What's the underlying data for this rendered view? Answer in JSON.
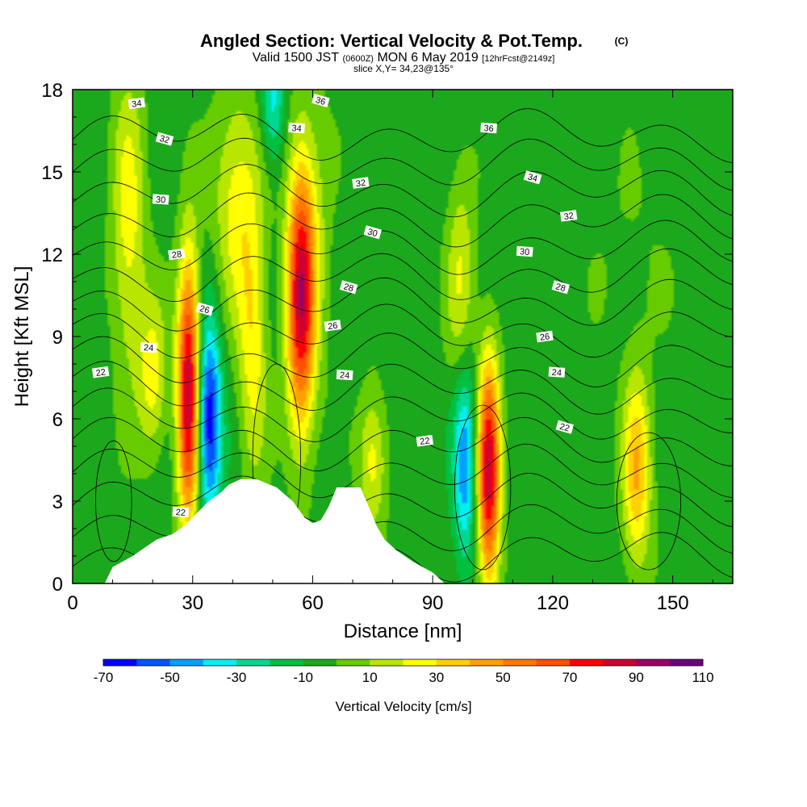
{
  "title": {
    "main": "Angled Section: Vertical Velocity & Pot.Temp.",
    "main_suffix": "(C)",
    "valid_prefix": "Valid 1500 JST",
    "valid_utc": "(0600Z)",
    "valid_date": "MON 6 May 2019",
    "valid_fcst": "[12hrFcst@2149z]",
    "slice": "slice X,Y= 34,23@135°"
  },
  "chart_data": {
    "type": "heatmap",
    "xlabel": "Distance [nm]",
    "ylabel": "Height [Kft MSL]",
    "xlim": [
      0,
      165
    ],
    "ylim": [
      0,
      18
    ],
    "x_ticks": [
      "0",
      "30",
      "60",
      "90",
      "120",
      "150"
    ],
    "x_tick_values": [
      0,
      30,
      60,
      90,
      120,
      150
    ],
    "y_ticks": [
      "0",
      "3",
      "6",
      "9",
      "12",
      "15",
      "18"
    ],
    "y_tick_values": [
      0,
      3,
      6,
      9,
      12,
      15,
      18
    ],
    "background_value": -5,
    "velocity_cells": [
      {
        "x": 14,
        "y": 13.0,
        "sx": 3.0,
        "sy": 4.0,
        "v": 30
      },
      {
        "x": 20,
        "y": 7.5,
        "sx": 2.5,
        "sy": 2.0,
        "v": 30
      },
      {
        "x": 29,
        "y": 7.0,
        "sx": 2.0,
        "sy": 3.5,
        "v": 95
      },
      {
        "x": 34,
        "y": 6.0,
        "sx": 2.2,
        "sy": 2.5,
        "v": -65
      },
      {
        "x": 41,
        "y": 14.0,
        "sx": 4.0,
        "sy": 3.0,
        "v": 30
      },
      {
        "x": 45,
        "y": 8.5,
        "sx": 2.5,
        "sy": 3.5,
        "v": 30
      },
      {
        "x": 57,
        "y": 10.5,
        "sx": 2.5,
        "sy": 3.5,
        "v": 90
      },
      {
        "x": 61,
        "y": 13.0,
        "sx": 3.0,
        "sy": 4.0,
        "v": 12
      },
      {
        "x": 75,
        "y": 4.5,
        "sx": 2.5,
        "sy": 1.8,
        "v": 30
      },
      {
        "x": 97,
        "y": 11.0,
        "sx": 2.5,
        "sy": 3.0,
        "v": 25
      },
      {
        "x": 98,
        "y": 4.5,
        "sx": 2.0,
        "sy": 2.5,
        "v": -45
      },
      {
        "x": 104,
        "y": 4.0,
        "sx": 2.0,
        "sy": 3.0,
        "v": 90
      },
      {
        "x": 141,
        "y": 4.0,
        "sx": 2.5,
        "sy": 2.5,
        "v": 45
      },
      {
        "x": 50,
        "y": 17.5,
        "sx": 2.0,
        "sy": 1.5,
        "v": -30
      },
      {
        "x": 140,
        "y": 12.0,
        "sx": 8.0,
        "sy": 3.0,
        "v": 5
      }
    ],
    "terrain": [
      [
        0,
        0
      ],
      [
        8,
        0
      ],
      [
        10,
        0.6
      ],
      [
        15,
        1.0
      ],
      [
        18,
        1.3
      ],
      [
        21,
        1.6
      ],
      [
        25,
        1.8
      ],
      [
        28,
        2.1
      ],
      [
        30,
        2.4
      ],
      [
        32,
        2.7
      ],
      [
        34,
        3.0
      ],
      [
        37,
        3.3
      ],
      [
        39,
        3.6
      ],
      [
        42,
        3.8
      ],
      [
        46,
        3.8
      ],
      [
        51,
        3.5
      ],
      [
        55,
        3.0
      ],
      [
        58,
        2.4
      ],
      [
        60,
        2.2
      ],
      [
        62,
        2.3
      ],
      [
        64,
        2.8
      ],
      [
        66,
        3.5
      ],
      [
        72,
        3.5
      ],
      [
        74,
        2.8
      ],
      [
        76,
        2.1
      ],
      [
        78,
        1.6
      ],
      [
        81,
        1.2
      ],
      [
        85,
        0.8
      ],
      [
        90,
        0.4
      ],
      [
        93,
        0
      ]
    ],
    "theta_contours": {
      "levels": [
        22,
        23,
        24,
        25,
        26,
        27,
        28,
        29,
        30,
        31,
        32,
        33,
        34,
        35,
        36,
        37
      ],
      "labels": [
        {
          "text": "22",
          "x": 7,
          "y": 7.7
        },
        {
          "text": "24",
          "x": 19,
          "y": 8.6
        },
        {
          "text": "26",
          "x": 33,
          "y": 10.0
        },
        {
          "text": "28",
          "x": 26,
          "y": 12.0
        },
        {
          "text": "30",
          "x": 22,
          "y": 14.0
        },
        {
          "text": "32",
          "x": 23,
          "y": 16.2
        },
        {
          "text": "34",
          "x": 16,
          "y": 17.5
        },
        {
          "text": "22",
          "x": 27,
          "y": 2.6
        },
        {
          "text": "28",
          "x": 69,
          "y": 10.8
        },
        {
          "text": "26",
          "x": 65,
          "y": 9.4
        },
        {
          "text": "24",
          "x": 68,
          "y": 7.6
        },
        {
          "text": "30",
          "x": 75,
          "y": 12.8
        },
        {
          "text": "32",
          "x": 72,
          "y": 14.6
        },
        {
          "text": "34",
          "x": 56,
          "y": 16.6
        },
        {
          "text": "36",
          "x": 62,
          "y": 17.6
        },
        {
          "text": "22",
          "x": 88,
          "y": 5.2
        },
        {
          "text": "36",
          "x": 104,
          "y": 16.6
        },
        {
          "text": "34",
          "x": 115,
          "y": 14.8
        },
        {
          "text": "32",
          "x": 124,
          "y": 13.4
        },
        {
          "text": "30",
          "x": 113,
          "y": 12.1
        },
        {
          "text": "28",
          "x": 122,
          "y": 10.8
        },
        {
          "text": "26",
          "x": 118,
          "y": 9.0
        },
        {
          "text": "24",
          "x": 121,
          "y": 7.7
        },
        {
          "text": "22",
          "x": 123,
          "y": 5.7
        }
      ]
    }
  },
  "colorbar": {
    "label": "Vertical Velocity [cm/s]",
    "min": -70,
    "max": 110,
    "step": 10,
    "tick_labels": [
      "-70",
      "-50",
      "-30",
      "-10",
      "10",
      "30",
      "50",
      "70",
      "90",
      "110"
    ],
    "colors": [
      "#0000ff",
      "#0055ff",
      "#00a0ff",
      "#00f0f0",
      "#00d890",
      "#00c040",
      "#1ca81c",
      "#66cc00",
      "#b8e600",
      "#ffff00",
      "#ffd000",
      "#ffa000",
      "#ff7800",
      "#ff5000",
      "#ff0000",
      "#cc0033",
      "#990066",
      "#6a0080"
    ]
  }
}
